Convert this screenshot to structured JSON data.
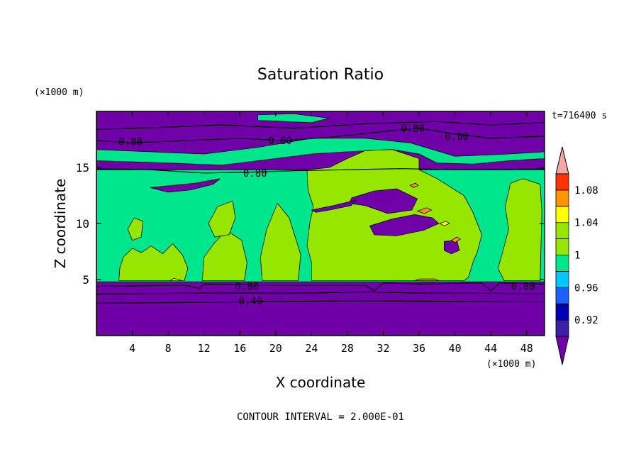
{
  "chart_data": {
    "type": "heatmap",
    "title": "Saturation Ratio",
    "xlabel": "X coordinate",
    "ylabel": "Z coordinate",
    "x_unit": "(×1000 m)",
    "y_unit": "(×1000 m)",
    "time_label": "t=716400 s",
    "footer": "CONTOUR INTERVAL = 2.000E-01",
    "xlim": [
      0,
      50
    ],
    "ylim": [
      0,
      20
    ],
    "x_ticks": [
      4,
      8,
      12,
      16,
      20,
      24,
      28,
      32,
      36,
      40,
      44,
      48
    ],
    "y_ticks": [
      5,
      10,
      15
    ],
    "colorbar": {
      "labels": [
        "0.92",
        "0.96",
        "1",
        "1.04",
        "1.08"
      ],
      "bins": [
        {
          "range": "<0.90",
          "color": "#7000a8"
        },
        {
          "range": "0.90-0.92",
          "color": "#3b1fa5"
        },
        {
          "range": "0.92-0.94",
          "color": "#0000b4"
        },
        {
          "range": "0.94-0.96",
          "color": "#1e5fff"
        },
        {
          "range": "0.96-0.98",
          "color": "#00c8ff"
        },
        {
          "range": "0.98-1.00",
          "color": "#00e68c"
        },
        {
          "range": "1.00-1.02",
          "color": "#96e600"
        },
        {
          "range": "1.02-1.04",
          "color": "#96e600"
        },
        {
          "range": "1.04-1.06",
          "color": "#ffff00"
        },
        {
          "range": "1.06-1.08",
          "color": "#ff9600"
        },
        {
          "range": "1.08-1.10",
          "color": "#ff3200"
        },
        {
          "range": ">1.10",
          "color": "#f5a5a5"
        }
      ]
    },
    "contour_labels": [
      {
        "text": "0.80",
        "x": 3.8,
        "y": 17.3
      },
      {
        "text": "0.80",
        "x": 20.5,
        "y": 17.4
      },
      {
        "text": "0.80",
        "x": 35.3,
        "y": 18.5
      },
      {
        "text": "0.80",
        "x": 40.2,
        "y": 17.8
      },
      {
        "text": "0.80",
        "x": 17.7,
        "y": 14.5
      },
      {
        "text": "0.80",
        "x": 16.8,
        "y": 4.4
      },
      {
        "text": "0.80",
        "x": 47.6,
        "y": 4.4
      },
      {
        "text": "0.40",
        "x": 17.2,
        "y": 3.1
      }
    ],
    "regions": [
      {
        "value": "<0.90",
        "points": [
          [
            0,
            0
          ],
          [
            50,
            0
          ],
          [
            50,
            4.8
          ],
          [
            0,
            4.8
          ]
        ]
      },
      {
        "value": "<0.90",
        "points": [
          [
            0,
            14.8
          ],
          [
            50,
            14.8
          ],
          [
            50,
            20
          ],
          [
            0,
            20
          ]
        ]
      },
      {
        "value": "0.98-1.00",
        "points": [
          [
            0,
            15.6
          ],
          [
            8,
            15.4
          ],
          [
            14,
            15.2
          ],
          [
            20,
            15.8
          ],
          [
            24,
            16.2
          ],
          [
            28,
            16.4
          ],
          [
            33,
            16.6
          ],
          [
            36,
            16.2
          ],
          [
            38,
            15.4
          ],
          [
            42,
            15.3
          ],
          [
            46,
            15.6
          ],
          [
            50,
            15.8
          ],
          [
            50,
            16.4
          ],
          [
            46,
            16.2
          ],
          [
            40,
            16.0
          ],
          [
            35,
            17.2
          ],
          [
            30,
            17.6
          ],
          [
            24,
            17.6
          ],
          [
            18,
            16.8
          ],
          [
            12,
            16.2
          ],
          [
            6,
            16.4
          ],
          [
            0,
            16.6
          ]
        ]
      },
      {
        "value": "0.98-1.00",
        "points": [
          [
            18,
            19.2
          ],
          [
            24,
            19.0
          ],
          [
            26,
            19.4
          ],
          [
            22,
            19.8
          ],
          [
            18,
            19.7
          ]
        ]
      },
      {
        "value": "0.98-1.00",
        "points": [
          [
            0,
            4.8
          ],
          [
            50,
            4.8
          ],
          [
            50,
            14.8
          ],
          [
            0,
            14.8
          ]
        ]
      },
      {
        "value": "1.00-1.02",
        "points": [
          [
            23.5,
            14.8
          ],
          [
            26,
            15.0
          ],
          [
            28,
            15.8
          ],
          [
            30,
            16.5
          ],
          [
            33,
            16.6
          ],
          [
            36,
            15.8
          ],
          [
            36,
            14.8
          ],
          [
            38,
            14.0
          ],
          [
            41,
            12.5
          ],
          [
            42,
            11.0
          ],
          [
            43,
            9.0
          ],
          [
            42.5,
            7.5
          ],
          [
            42,
            6.5
          ],
          [
            41.5,
            5.2
          ],
          [
            41,
            4.9
          ],
          [
            24,
            4.9
          ],
          [
            24,
            6.5
          ],
          [
            23.5,
            8.0
          ],
          [
            23.8,
            10.0
          ],
          [
            24.2,
            11.5
          ],
          [
            23.6,
            13.0
          ]
        ]
      },
      {
        "value": "1.00-1.02",
        "points": [
          [
            2.5,
            4.9
          ],
          [
            9.8,
            4.9
          ],
          [
            10.2,
            6.0
          ],
          [
            9.6,
            7.2
          ],
          [
            8.5,
            8.2
          ],
          [
            7.4,
            7.3
          ],
          [
            6.1,
            8.0
          ],
          [
            5.0,
            7.4
          ],
          [
            4.0,
            7.8
          ],
          [
            3.0,
            7.0
          ],
          [
            2.6,
            6.0
          ]
        ]
      },
      {
        "value": "1.00-1.02",
        "points": [
          [
            45.5,
            4.9
          ],
          [
            49.5,
            4.9
          ],
          [
            49.6,
            8.0
          ],
          [
            49.7,
            11.0
          ],
          [
            49.5,
            13.5
          ],
          [
            47.6,
            14.0
          ],
          [
            46.2,
            13.6
          ],
          [
            45.6,
            11.5
          ],
          [
            46.0,
            9.5
          ],
          [
            45.3,
            7.4
          ],
          [
            44.8,
            6.0
          ]
        ]
      },
      {
        "value": "1.00-1.02",
        "points": [
          [
            11.8,
            4.9
          ],
          [
            16.5,
            4.9
          ],
          [
            16.8,
            6.5
          ],
          [
            16.2,
            8.5
          ],
          [
            14.5,
            9.4
          ],
          [
            13.2,
            8.3
          ],
          [
            12.0,
            7.0
          ]
        ]
      },
      {
        "value": "1.00-1.02",
        "points": [
          [
            18.5,
            4.9
          ],
          [
            22.5,
            4.9
          ],
          [
            22.8,
            7.2
          ],
          [
            21.5,
            10.5
          ],
          [
            20.2,
            11.8
          ],
          [
            19.0,
            9.5
          ],
          [
            18.3,
            7.0
          ]
        ]
      },
      {
        "value": "1.00-1.02",
        "points": [
          [
            12.5,
            10.0
          ],
          [
            13.5,
            11.5
          ],
          [
            15.2,
            12.0
          ],
          [
            15.5,
            10.5
          ],
          [
            14.8,
            9.0
          ],
          [
            13.2,
            8.8
          ]
        ]
      },
      {
        "value": "1.00-1.02",
        "points": [
          [
            3.5,
            9.5
          ],
          [
            4.2,
            10.5
          ],
          [
            5.2,
            10.2
          ],
          [
            5.0,
            8.8
          ],
          [
            4.0,
            8.5
          ]
        ]
      },
      {
        "value": "<0.90",
        "points": [
          [
            28.5,
            12.3
          ],
          [
            31.0,
            12.9
          ],
          [
            33.5,
            13.1
          ],
          [
            35.8,
            12.2
          ],
          [
            35.2,
            11.2
          ],
          [
            32.5,
            10.9
          ],
          [
            30.0,
            11.6
          ],
          [
            28.2,
            11.8
          ]
        ]
      },
      {
        "value": "<0.90",
        "points": [
          [
            30.5,
            9.8
          ],
          [
            33.0,
            10.4
          ],
          [
            35.5,
            10.8
          ],
          [
            37.5,
            10.5
          ],
          [
            38.2,
            10.0
          ],
          [
            36.5,
            9.4
          ],
          [
            33.5,
            8.9
          ],
          [
            31.0,
            9.0
          ]
        ]
      },
      {
        "value": "<0.90",
        "points": [
          [
            6.0,
            13.2
          ],
          [
            8.5,
            13.4
          ],
          [
            11.0,
            13.6
          ],
          [
            13.8,
            14.0
          ],
          [
            13.0,
            13.5
          ],
          [
            10.5,
            13.0
          ],
          [
            8.0,
            12.8
          ]
        ]
      },
      {
        "value": "<0.90",
        "points": [
          [
            38.8,
            8.4
          ],
          [
            40.2,
            8.5
          ],
          [
            40.5,
            7.6
          ],
          [
            39.6,
            7.3
          ],
          [
            38.8,
            7.6
          ]
        ]
      },
      {
        "value": "<0.90",
        "points": [
          [
            24.0,
            11.2
          ],
          [
            26.5,
            11.6
          ],
          [
            29.0,
            12.1
          ],
          [
            28.4,
            11.6
          ],
          [
            26.0,
            11.2
          ],
          [
            24.5,
            11.0
          ]
        ]
      },
      {
        "value": "1.04-1.06",
        "points": [
          [
            8.2,
            4.9
          ],
          [
            8.6,
            5.1
          ],
          [
            9.2,
            5.0
          ],
          [
            9.5,
            4.9
          ]
        ]
      },
      {
        "value": "1.06-1.08",
        "points": [
          [
            35.5,
            4.9
          ],
          [
            36.0,
            5.05
          ],
          [
            37.8,
            5.05
          ],
          [
            38.2,
            4.9
          ]
        ]
      },
      {
        "value": "1.06-1.08",
        "points": [
          [
            35.0,
            13.4
          ],
          [
            35.6,
            13.6
          ],
          [
            35.9,
            13.4
          ],
          [
            35.4,
            13.2
          ]
        ]
      },
      {
        "value": "1.06-1.08",
        "points": [
          [
            35.8,
            11.1
          ],
          [
            36.8,
            11.4
          ],
          [
            37.4,
            11.2
          ],
          [
            36.6,
            10.9
          ]
        ]
      },
      {
        "value": "1.04-1.06",
        "points": [
          [
            38.3,
            10.0
          ],
          [
            39.0,
            10.2
          ],
          [
            39.4,
            10.0
          ],
          [
            38.8,
            9.8
          ]
        ]
      },
      {
        "value": "1.06-1.08",
        "points": [
          [
            39.6,
            8.5
          ],
          [
            40.2,
            8.8
          ],
          [
            40.6,
            8.6
          ],
          [
            40.0,
            8.3
          ]
        ]
      }
    ],
    "contour_lines": [
      {
        "value": 0.4,
        "points": [
          [
            0,
            2.9
          ],
          [
            10,
            2.95
          ],
          [
            20,
            3.05
          ],
          [
            30,
            3.1
          ],
          [
            40,
            3.05
          ],
          [
            50,
            3.0
          ]
        ]
      },
      {
        "value": 0.6,
        "points": [
          [
            0,
            3.7
          ],
          [
            12,
            3.8
          ],
          [
            24,
            3.8
          ],
          [
            30,
            3.9
          ],
          [
            36,
            3.8
          ],
          [
            50,
            3.75
          ]
        ]
      },
      {
        "value": 0.8,
        "points": [
          [
            0,
            4.4
          ],
          [
            10,
            4.5
          ],
          [
            11.5,
            4.2
          ],
          [
            12,
            4.6
          ],
          [
            20,
            4.5
          ],
          [
            30,
            4.5
          ],
          [
            31,
            4.0
          ],
          [
            32,
            4.7
          ],
          [
            36,
            4.6
          ],
          [
            43,
            4.7
          ],
          [
            44,
            4.0
          ],
          [
            45,
            4.7
          ],
          [
            50,
            4.6
          ]
        ]
      },
      {
        "value": 0.8,
        "points": [
          [
            0,
            14.9
          ],
          [
            6,
            14.8
          ],
          [
            12,
            14.5
          ],
          [
            18,
            14.6
          ],
          [
            22,
            14.7
          ],
          [
            28,
            14.8
          ],
          [
            34,
            14.9
          ],
          [
            40,
            14.8
          ],
          [
            46,
            14.8
          ],
          [
            50,
            14.9
          ]
        ]
      },
      {
        "value": 0.8,
        "points": [
          [
            0,
            17.4
          ],
          [
            4,
            17.2
          ],
          [
            10,
            17.4
          ],
          [
            16,
            17.6
          ],
          [
            21,
            17.4
          ],
          [
            26,
            17.7
          ],
          [
            32,
            18.2
          ],
          [
            36,
            18.5
          ],
          [
            40,
            18.0
          ],
          [
            44,
            17.6
          ],
          [
            50,
            17.8
          ]
        ]
      },
      {
        "value": 0.6,
        "points": [
          [
            0,
            18.4
          ],
          [
            8,
            18.6
          ],
          [
            14,
            18.8
          ],
          [
            22,
            18.5
          ],
          [
            30,
            18.9
          ],
          [
            38,
            19.1
          ],
          [
            44,
            18.8
          ],
          [
            50,
            19.0
          ]
        ]
      }
    ]
  }
}
